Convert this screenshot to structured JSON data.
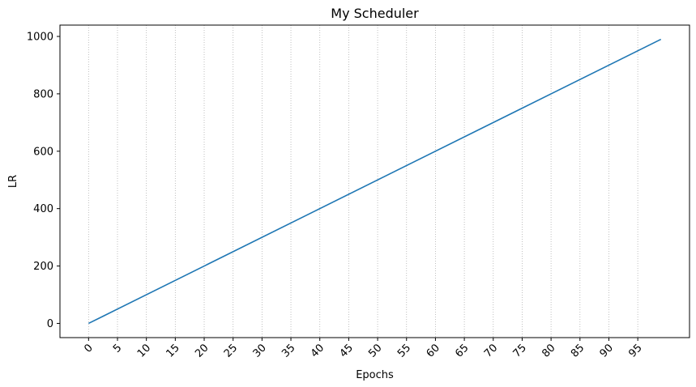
{
  "chart_data": {
    "type": "line",
    "title": "My Scheduler",
    "xlabel": "Epochs",
    "ylabel": "LR",
    "xlim": [
      -4.95,
      103.95
    ],
    "ylim": [
      -49.5,
      1039.5
    ],
    "x_ticks": [
      0,
      5,
      10,
      15,
      20,
      25,
      30,
      35,
      40,
      45,
      50,
      55,
      60,
      65,
      70,
      75,
      80,
      85,
      90,
      95
    ],
    "x_tick_labels": [
      "0",
      "5",
      "10",
      "15",
      "20",
      "25",
      "30",
      "35",
      "40",
      "45",
      "50",
      "55",
      "60",
      "65",
      "70",
      "75",
      "80",
      "85",
      "90",
      "95"
    ],
    "x_tick_rotation": 45,
    "y_ticks": [
      0,
      200,
      400,
      600,
      800,
      1000
    ],
    "y_tick_labels": [
      "0",
      "200",
      "400",
      "600",
      "800",
      "1000"
    ],
    "grid": {
      "x": true,
      "y": false,
      "style": "dotted"
    },
    "colors": {
      "line": "#1f77b4",
      "grid": "#b0b0b0",
      "axis": "#000000"
    },
    "series": [
      {
        "x": [
          0,
          99
        ],
        "y": [
          0,
          990
        ]
      }
    ]
  }
}
